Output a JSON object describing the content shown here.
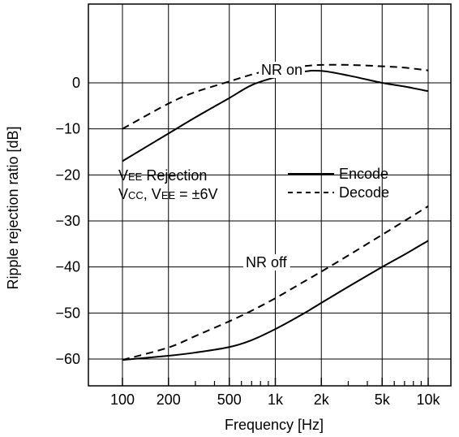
{
  "chart_data": {
    "type": "line",
    "xlabel": "Frequency  [Hz]",
    "ylabel": "Ripple rejection ratio  [dB]",
    "x_scale": "log",
    "xlim": [
      100,
      10000
    ],
    "ylim": [
      -65,
      10
    ],
    "x_ticks": [
      100,
      200,
      500,
      1000,
      2000,
      5000,
      10000
    ],
    "x_tick_labels": [
      "100",
      "200",
      "500",
      "1k",
      "2k",
      "5k",
      "10k"
    ],
    "x_minor_ticks": [
      300,
      400,
      600,
      700,
      800,
      900,
      3000,
      4000,
      6000,
      7000,
      8000,
      9000
    ],
    "y_ticks": [
      0,
      -10,
      -20,
      -30,
      -40,
      -50,
      -60
    ],
    "y_tick_labels": [
      "0",
      "−10",
      "−20",
      "−30",
      "−40",
      "−50",
      "−60"
    ],
    "grid": true,
    "series": [
      {
        "name": "Encode",
        "group": "NR on",
        "style": "solid",
        "x": [
          100,
          200,
          300,
          500,
          700,
          1000,
          1500,
          2000,
          3000,
          5000,
          7000,
          10000
        ],
        "y": [
          -17,
          -11,
          -7.5,
          -3.3,
          -0.5,
          1.2,
          2.4,
          2.6,
          1.6,
          0.0,
          -0.8,
          -1.8
        ]
      },
      {
        "name": "Decode",
        "group": "NR on",
        "style": "dashed",
        "x": [
          100,
          200,
          300,
          500,
          700,
          1000,
          1500,
          2000,
          3000,
          5000,
          7000,
          10000
        ],
        "y": [
          -10,
          -4.5,
          -2.0,
          0.3,
          1.8,
          3.0,
          3.6,
          3.9,
          3.9,
          3.6,
          3.3,
          2.7
        ]
      },
      {
        "name": "Encode",
        "group": "NR off",
        "style": "solid",
        "x": [
          100,
          200,
          300,
          500,
          700,
          1000,
          1500,
          2000,
          3000,
          5000,
          7000,
          10000
        ],
        "y": [
          -60.2,
          -59.3,
          -58.6,
          -57.4,
          -55.9,
          -53.5,
          -50.3,
          -47.8,
          -44.3,
          -40.0,
          -37.3,
          -34.3
        ]
      },
      {
        "name": "Decode",
        "group": "NR off",
        "style": "dashed",
        "x": [
          100,
          200,
          300,
          500,
          700,
          1000,
          1500,
          2000,
          3000,
          5000,
          7000,
          10000
        ],
        "y": [
          -60.2,
          -57.5,
          -55.0,
          -51.8,
          -49.5,
          -46.8,
          -43.4,
          -41.0,
          -37.5,
          -33.0,
          -30.0,
          -26.8
        ]
      }
    ],
    "annotations": {
      "nr_on": "NR on",
      "nr_off": "NR off",
      "cond_line1_prefix": "V",
      "cond_line1_sub": "EE",
      "cond_line1_rest": " Rejection",
      "cond_line2_v1": "V",
      "cond_line2_sub1": "CC",
      "cond_line2_mid": ", V",
      "cond_line2_sub2": "EE",
      "cond_line2_rest": " = ±6V"
    },
    "legend": {
      "placement": "inside-middle-right",
      "entries": [
        {
          "label": "Encode",
          "style": "solid"
        },
        {
          "label": "Decode",
          "style": "dashed"
        }
      ]
    }
  }
}
